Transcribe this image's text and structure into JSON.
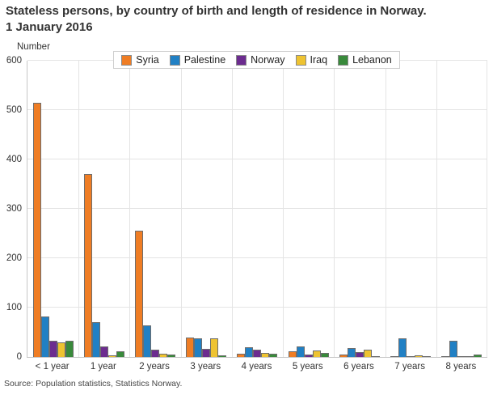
{
  "page": {
    "title": "Stateless persons, by country of birth and length of residence in Norway.\n1 January 2016",
    "source": "Source: Population statistics, Statistics Norway."
  },
  "chart_data": {
    "type": "bar",
    "title": "Stateless persons, by country of birth and length of residence in Norway. 1 January 2016",
    "ylabel": "Number",
    "xlabel": "",
    "ylim": [
      0,
      600
    ],
    "yticks": [
      0,
      100,
      200,
      300,
      400,
      500,
      600
    ],
    "grid": true,
    "legend_position": "top-center",
    "categories": [
      "< 1 year",
      "1 year",
      "2 years",
      "3 years",
      "4 years",
      "5 years",
      "6 years",
      "7 years",
      "8 years"
    ],
    "series": [
      {
        "name": "Syria",
        "color": "#ef7d24",
        "values": [
          515,
          370,
          255,
          40,
          6,
          11,
          5,
          1,
          1
        ]
      },
      {
        "name": "Palestine",
        "color": "#2180c4",
        "values": [
          82,
          71,
          64,
          38,
          20,
          21,
          18,
          37,
          32
        ]
      },
      {
        "name": "Norway",
        "color": "#6c2c8f",
        "values": [
          33,
          22,
          14,
          16,
          14,
          5,
          10,
          1,
          0
        ]
      },
      {
        "name": "Iraq",
        "color": "#eec331",
        "values": [
          29,
          4,
          7,
          38,
          8,
          13,
          15,
          4,
          1
        ]
      },
      {
        "name": "Lebanon",
        "color": "#398a3b",
        "values": [
          33,
          11,
          5,
          3,
          6,
          8,
          1,
          1,
          5
        ]
      }
    ]
  }
}
